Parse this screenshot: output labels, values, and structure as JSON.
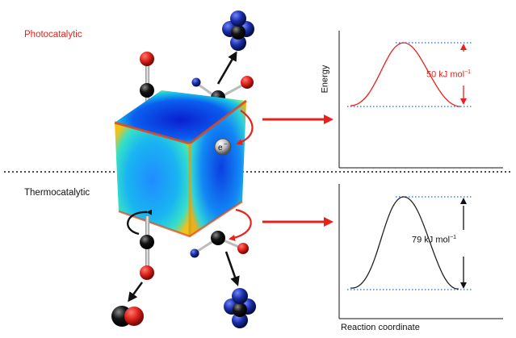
{
  "labels": {
    "photocatalytic": "Photocatalytic",
    "thermocatalytic": "Thermocatalytic",
    "y_axis": "Energy",
    "x_axis": "Reaction coordinate",
    "electron": "e",
    "electron_sup": "−"
  },
  "barriers": {
    "photocatalytic": {
      "value": "50 kJ mol",
      "unit_sup": "−1"
    },
    "thermocatalytic": {
      "value": "79 kJ mol",
      "unit_sup": "−1"
    }
  },
  "colors": {
    "photo_red": "#e8221b",
    "thermo_black": "#222222",
    "dotted_blue": "#4a7fd6",
    "atom_red": "#e0231b",
    "atom_blue": "#1a2fa8",
    "atom_black": "#111111"
  }
}
